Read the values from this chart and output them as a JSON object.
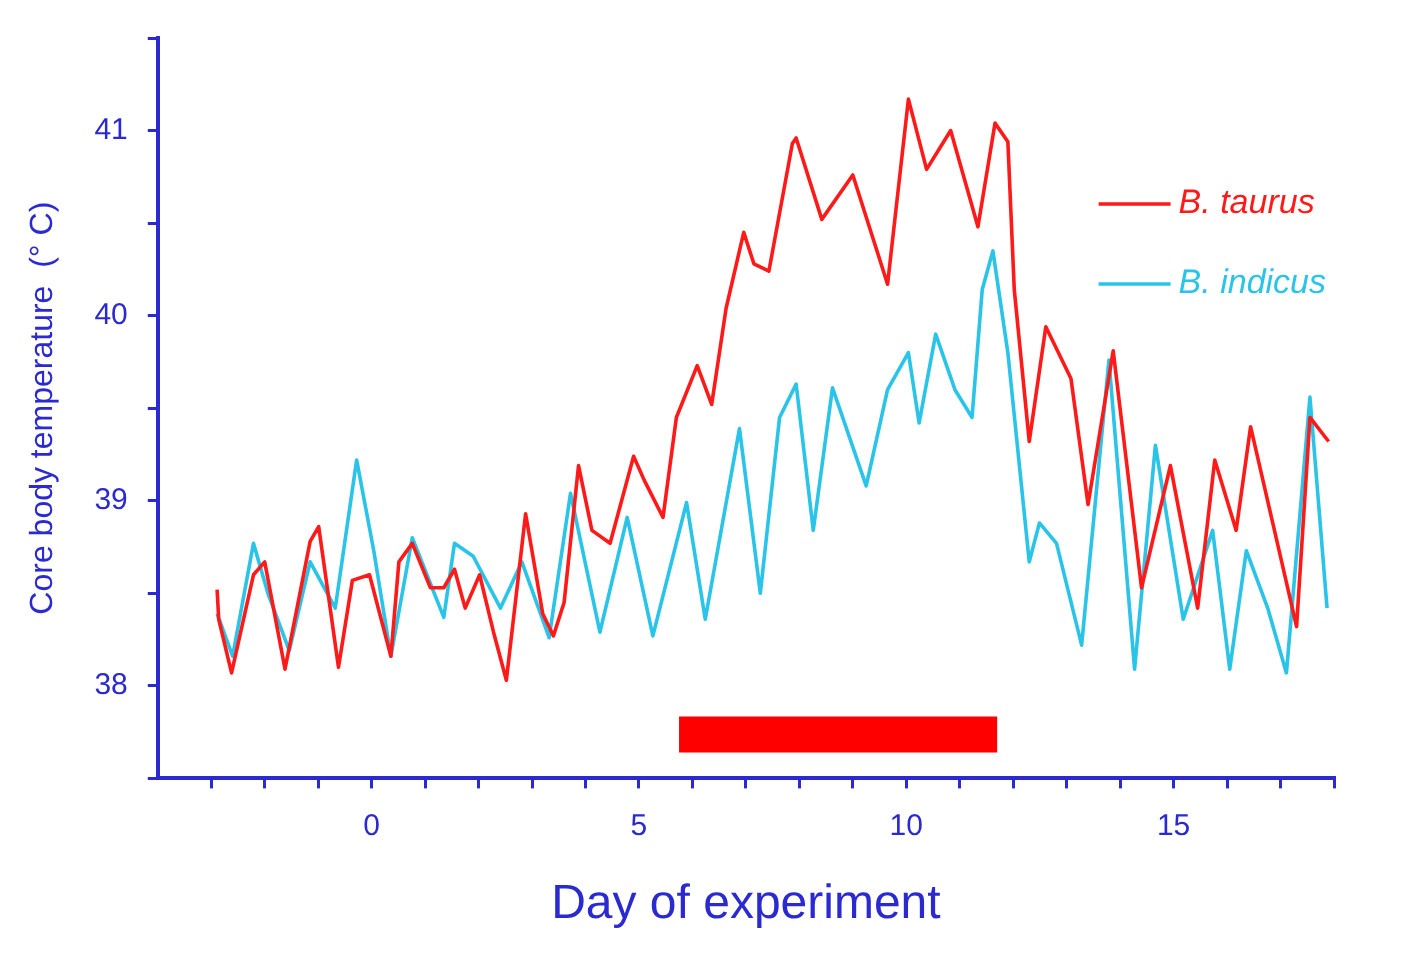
{
  "chart_data": {
    "type": "line",
    "xlabel": "Day of experiment",
    "ylabel": "Core body temperature  (° C)",
    "xlim": [
      -4,
      18
    ],
    "xticks": [
      {
        "value": -3,
        "label": null
      },
      {
        "value": -2,
        "label": null
      },
      {
        "value": -1,
        "label": null
      },
      0,
      {
        "value": 1,
        "label": null
      },
      {
        "value": 2,
        "label": null
      },
      {
        "value": 3,
        "label": null
      },
      {
        "value": 4,
        "label": null
      },
      5,
      {
        "value": 6,
        "label": null
      },
      {
        "value": 7,
        "label": null
      },
      {
        "value": 8,
        "label": null
      },
      {
        "value": 9,
        "label": null
      },
      10,
      {
        "value": 11,
        "label": null
      },
      {
        "value": 12,
        "label": null
      },
      {
        "value": 13,
        "label": null
      },
      {
        "value": 14,
        "label": null
      },
      15,
      {
        "value": 16,
        "label": null
      },
      {
        "value": 17,
        "label": null
      },
      {
        "value": 18,
        "label": null
      }
    ],
    "ylim": [
      37.5,
      41.5
    ],
    "yticks": [
      {
        "value": 37.5,
        "label": null
      },
      38,
      {
        "value": 38.5,
        "label": null
      },
      39,
      {
        "value": 39.5,
        "label": null
      },
      40,
      {
        "value": 40.5,
        "label": null
      },
      41,
      {
        "value": 41.5,
        "label": null
      }
    ],
    "series": [
      {
        "name": "B. taurus",
        "color": "#ff1a1a",
        "x": [
          -2.89,
          -2.86,
          -2.62,
          -2.21,
          -2.0,
          -1.62,
          -1.15,
          -0.99,
          -0.62,
          -0.36,
          -0.04,
          0.36,
          0.51,
          0.76,
          1.1,
          1.35,
          1.55,
          1.75,
          2.02,
          2.28,
          2.52,
          2.88,
          3.2,
          3.4,
          3.6,
          3.87,
          4.12,
          4.46,
          4.9,
          5.1,
          5.45,
          5.7,
          6.09,
          6.36,
          6.63,
          6.96,
          7.15,
          7.43,
          7.87,
          7.94,
          8.42,
          9.0,
          9.65,
          10.04,
          10.38,
          10.83,
          11.34,
          11.66,
          11.9,
          12.02,
          12.3,
          12.61,
          13.08,
          13.4,
          13.87,
          14.4,
          14.94,
          15.45,
          15.77,
          16.17,
          16.44,
          17.3,
          17.55,
          17.9
        ],
        "values": [
          38.52,
          38.36,
          38.07,
          38.6,
          38.67,
          38.09,
          38.78,
          38.86,
          38.1,
          38.57,
          38.6,
          38.16,
          38.67,
          38.77,
          38.53,
          38.53,
          38.63,
          38.42,
          38.6,
          38.29,
          38.03,
          38.93,
          38.39,
          38.27,
          38.45,
          39.19,
          38.84,
          38.77,
          39.24,
          39.11,
          38.91,
          39.45,
          39.73,
          39.52,
          40.04,
          40.45,
          40.28,
          40.24,
          40.93,
          40.96,
          40.52,
          40.76,
          40.17,
          41.17,
          40.79,
          41.0,
          40.48,
          41.04,
          40.94,
          40.14,
          39.32,
          39.94,
          39.66,
          38.98,
          39.81,
          38.53,
          39.19,
          38.42,
          39.22,
          38.84,
          39.4,
          38.32,
          39.45,
          39.32
        ]
      },
      {
        "name": "B. indicus",
        "color": "#29c4e8",
        "x": [
          -2.89,
          -2.6,
          -2.21,
          -1.94,
          -1.54,
          -1.15,
          -0.68,
          -0.28,
          0.04,
          0.36,
          0.76,
          1.35,
          1.55,
          1.9,
          2.41,
          2.81,
          3.32,
          3.72,
          4.27,
          4.78,
          5.26,
          5.89,
          6.24,
          6.88,
          7.27,
          7.63,
          7.94,
          8.26,
          8.62,
          9.25,
          9.65,
          10.04,
          10.24,
          10.55,
          10.91,
          11.23,
          11.42,
          11.62,
          11.9,
          12.3,
          12.49,
          12.81,
          13.28,
          13.79,
          14.27,
          14.66,
          15.18,
          15.73,
          16.05,
          16.36,
          16.76,
          17.11,
          17.55,
          17.87
        ],
        "values": [
          38.39,
          38.16,
          38.77,
          38.5,
          38.19,
          38.67,
          38.42,
          39.22,
          38.73,
          38.16,
          38.8,
          38.37,
          38.77,
          38.7,
          38.42,
          38.67,
          38.26,
          39.04,
          38.29,
          38.91,
          38.27,
          38.99,
          38.36,
          39.39,
          38.5,
          39.45,
          39.63,
          38.84,
          39.61,
          39.08,
          39.6,
          39.8,
          39.42,
          39.9,
          39.6,
          39.45,
          40.14,
          40.35,
          39.8,
          38.67,
          38.88,
          38.77,
          38.22,
          39.76,
          38.09,
          39.3,
          38.36,
          38.84,
          38.09,
          38.73,
          38.42,
          38.07,
          39.56,
          38.42
        ]
      }
    ],
    "bands": [
      {
        "axis": "x",
        "from": 5.75,
        "to": 11.7,
        "color": "#ff0000"
      }
    ],
    "legend": "top right",
    "grid": false,
    "marker": "none",
    "line_style": "solid"
  }
}
